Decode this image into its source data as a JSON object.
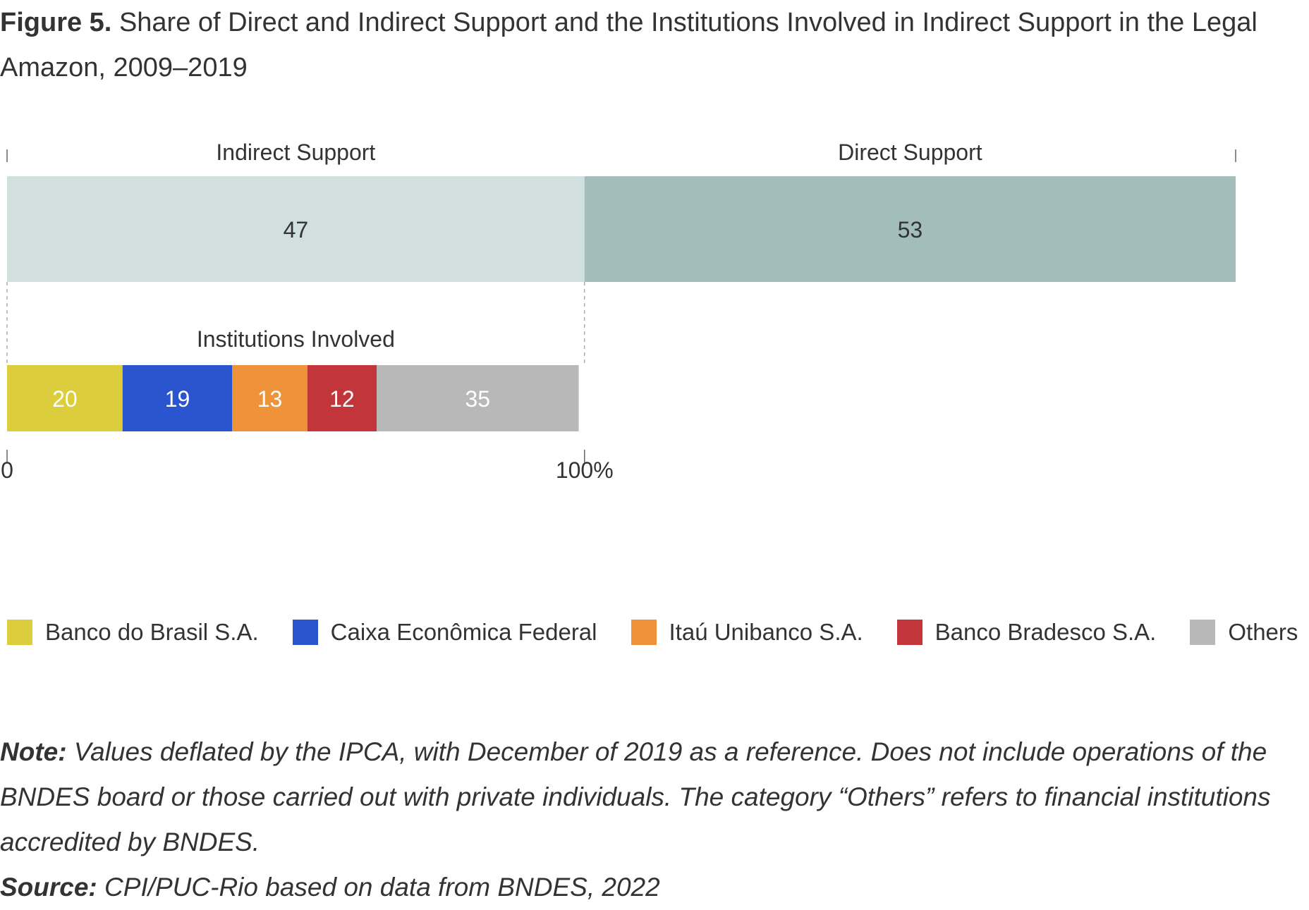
{
  "figure": {
    "label": "Figure 5.",
    "title": "Share of Direct and Indirect Support and the Institutions Involved in Indirect Support in the Legal Amazon, 2009–2019"
  },
  "chart_data": [
    {
      "type": "bar",
      "orientation": "horizontal-stacked",
      "categories": [
        "Indirect Support",
        "Direct Support"
      ],
      "values": [
        47,
        53
      ],
      "colors": [
        "#d1dfdf",
        "#a3bdbd"
      ],
      "axis_min_label": "0",
      "axis_max_label": "100%",
      "xlim": [
        0,
        100
      ]
    },
    {
      "type": "bar",
      "orientation": "horizontal-stacked",
      "title": "Institutions Involved",
      "categories": [
        "Banco do Brasil S.A.",
        "Caixa Econômica Federal",
        "Itaú Unibanco S.A.",
        "Banco Bradesco S.A.",
        "Others"
      ],
      "values": [
        20,
        19,
        13,
        12,
        35
      ],
      "colors": [
        "#dccd3c",
        "#2b55cf",
        "#ef933b",
        "#c2353a",
        "#b8b8b8"
      ],
      "label_colors": [
        "#ffffff",
        "#ffffff",
        "#ffffff",
        "#ffffff",
        "#ffffff"
      ],
      "axis_min_label": "0",
      "axis_max_label": "100%",
      "xlim": [
        0,
        100
      ],
      "legend_position": "bottom"
    }
  ],
  "notes": {
    "note_label": "Note:",
    "note_text": "Values deflated by the IPCA, with December of 2019 as a reference. Does not include operations of the BNDES board or those carried out with private individuals. The category “Others” refers to financial institutions accredited by BNDES.",
    "source_label": "Source:",
    "source_text": "CPI/PUC-Rio based on data from BNDES, 2022"
  }
}
